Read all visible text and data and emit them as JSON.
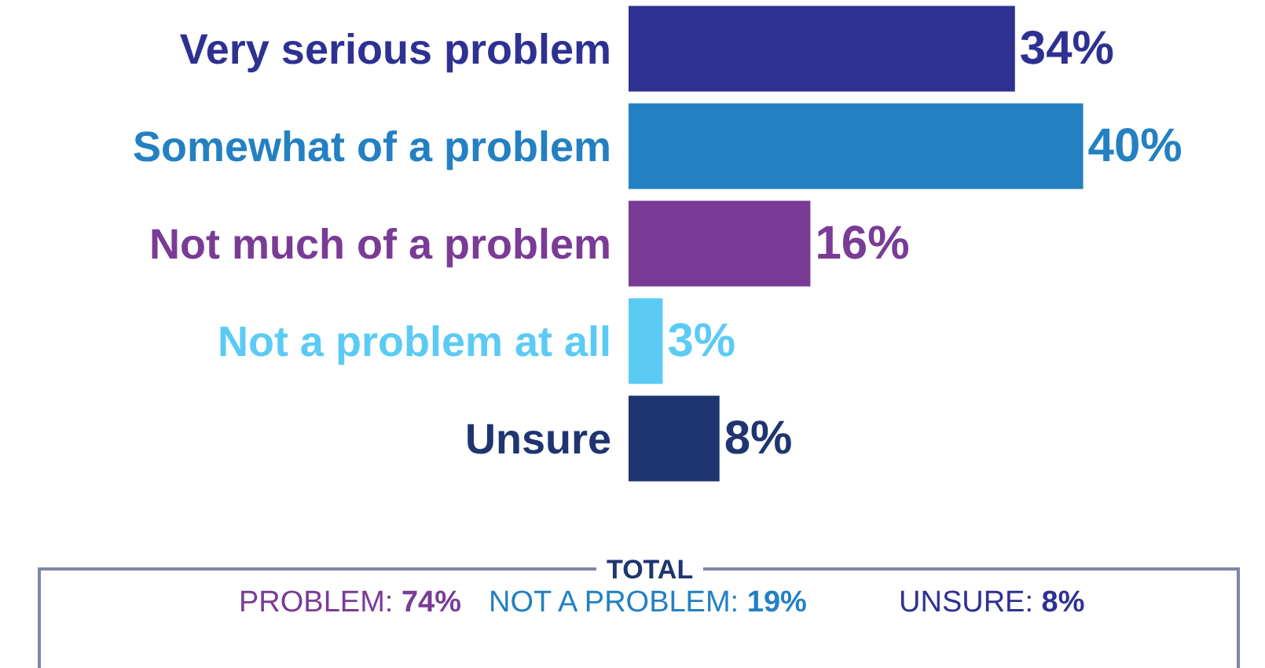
{
  "chart_data": {
    "type": "bar",
    "orientation": "horizontal",
    "categories": [
      "Very serious problem",
      "Somewhat of a problem",
      "Not much of a problem",
      "Not a problem at all",
      "Unsure"
    ],
    "values": [
      34,
      40,
      16,
      3,
      8
    ],
    "colors": [
      "#2e3192",
      "#2380c2",
      "#7a3b96",
      "#5bcbf5",
      "#1f3570"
    ],
    "value_labels": [
      "34%",
      "40%",
      "16%",
      "3%",
      "8%"
    ],
    "xlim": [
      0,
      56
    ],
    "tick_labels": "y",
    "annotations": [
      "TOTAL",
      "PROBLEM: 74%",
      "NOT A PROBLEM: 19%",
      "UNSURE: 8%"
    ]
  }
}
